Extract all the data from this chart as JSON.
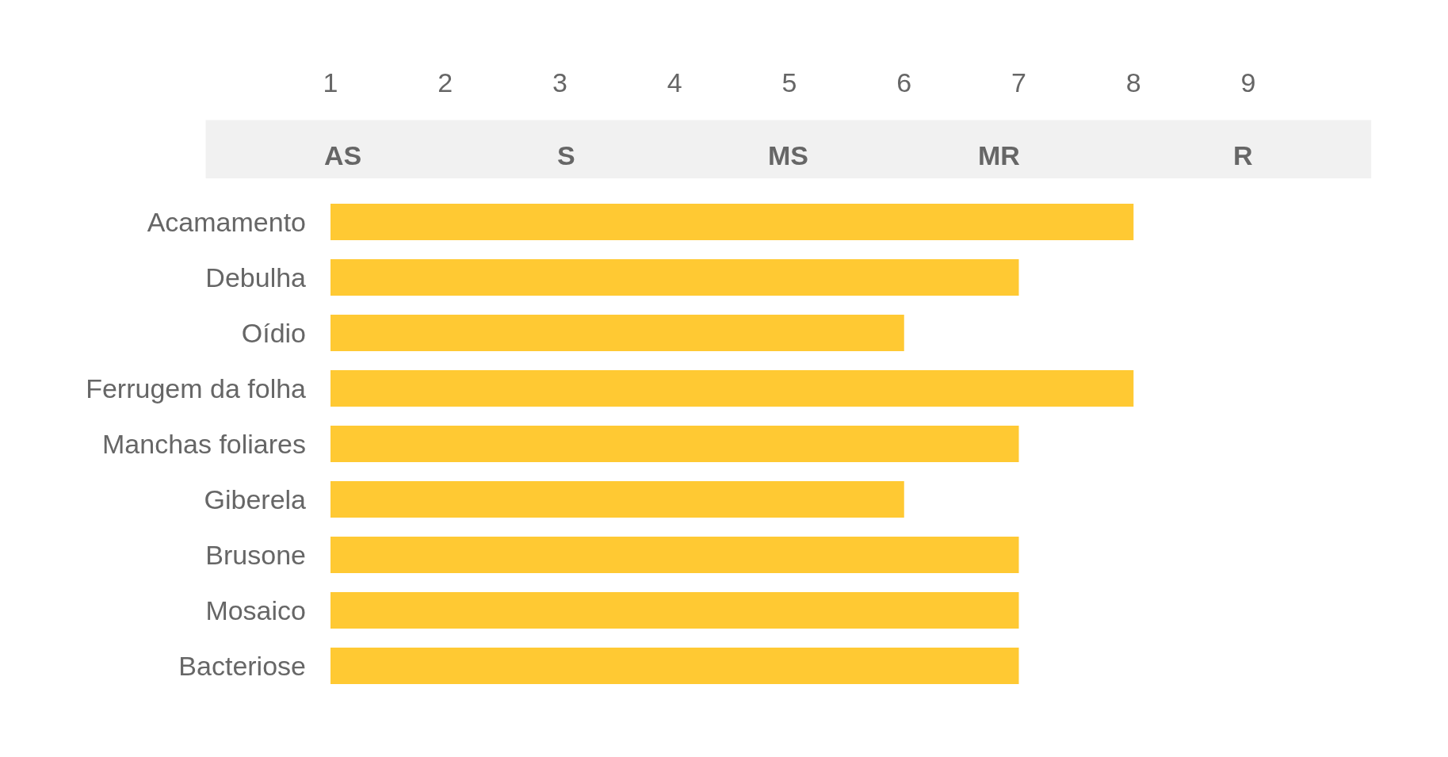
{
  "chart_data": {
    "type": "bar",
    "orientation": "horizontal",
    "categories": [
      "Acamamento",
      "Debulha",
      "Oídio",
      "Ferrugem da folha",
      "Manchas foliares",
      "Giberela",
      "Brusone",
      "Mosaico",
      "Bacteriose"
    ],
    "base": [
      1,
      1,
      1,
      1,
      1,
      1,
      1,
      1,
      1
    ],
    "values": [
      7,
      6,
      5,
      7,
      6,
      5,
      6,
      6,
      6
    ],
    "color": "#ffc933",
    "xlim": [
      1,
      9
    ],
    "xticks": [
      1,
      2,
      3,
      4,
      5,
      6,
      7,
      8,
      9
    ],
    "annotations": [
      "AS",
      "S",
      "MS",
      "MR",
      "R"
    ]
  }
}
